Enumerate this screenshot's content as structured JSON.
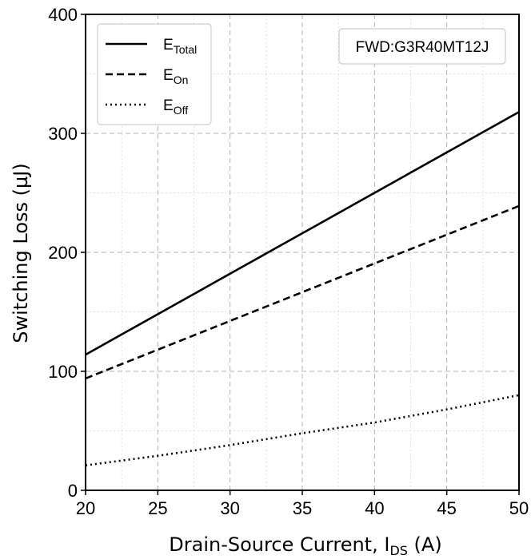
{
  "chart_data": {
    "type": "line",
    "xlabel": "Drain-Source Current, I",
    "xlabel_sub": "DS",
    "xlabel_unit": " (A)",
    "ylabel": "Switching Loss (µJ)",
    "xlim": [
      20,
      50
    ],
    "ylim": [
      0,
      400
    ],
    "x_ticks": [
      20,
      25,
      30,
      35,
      40,
      45,
      50
    ],
    "y_ticks": [
      0,
      100,
      200,
      300,
      400
    ],
    "grid": true,
    "legend_position": "top-left",
    "annotation": "FWD:G3R40MT12J",
    "series": [
      {
        "name_main": "E",
        "name_sub": "Total",
        "dash": "solid",
        "x": [
          20,
          50
        ],
        "y": [
          114,
          318
        ]
      },
      {
        "name_main": "E",
        "name_sub": "On",
        "dash": "dashed",
        "x": [
          20,
          50
        ],
        "y": [
          94,
          239
        ]
      },
      {
        "name_main": "E",
        "name_sub": "Off",
        "dash": "dotted",
        "x": [
          20,
          25,
          30,
          35,
          40,
          45,
          50
        ],
        "y": [
          21,
          29,
          38,
          48,
          57,
          68,
          80
        ]
      }
    ]
  }
}
